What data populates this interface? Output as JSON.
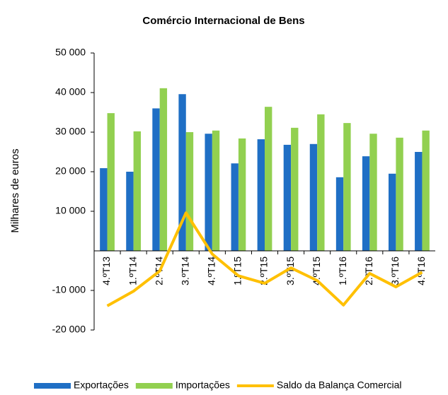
{
  "chart_data": {
    "type": "bar-line",
    "title": "Comércio Internacional de Bens",
    "y_label": "Milhares de euros",
    "categories": [
      "4.ºT13",
      "1.ºT14",
      "2.ºT14",
      "3.ºT14",
      "4.ºT14",
      "1.ºT15",
      "2.ºT15",
      "3.ºT15",
      "4.ºT15",
      "1.ºT16",
      "2.ºT16",
      "3.ºT16",
      "4.ºT16"
    ],
    "series": [
      {
        "name": "Exportações",
        "type": "bar",
        "color": "#1f6fc5",
        "values": [
          20900,
          20000,
          36000,
          39600,
          29600,
          22100,
          28200,
          26800,
          27000,
          18600,
          23900,
          19500,
          25000
        ]
      },
      {
        "name": "Importações",
        "type": "bar",
        "color": "#92d050",
        "values": [
          34800,
          30200,
          41100,
          30000,
          30400,
          28400,
          36400,
          31100,
          34500,
          32300,
          29600,
          28600,
          30400
        ]
      },
      {
        "name": "Saldo da Balança Comercial",
        "type": "line",
        "color": "#ffc000",
        "values": [
          -13900,
          -10200,
          -5100,
          9600,
          -800,
          -6300,
          -8200,
          -4300,
          -7500,
          -13700,
          -5700,
          -9100,
          -5400
        ]
      }
    ],
    "ylim": [
      -20000,
      50000
    ],
    "yticks": [
      {
        "value": -20000,
        "label": "-20 000"
      },
      {
        "value": -10000,
        "label": "-10 000"
      },
      {
        "value": 10000,
        "label": "10 000"
      },
      {
        "value": 20000,
        "label": "20 000"
      },
      {
        "value": 30000,
        "label": "30 000"
      },
      {
        "value": 40000,
        "label": "40 000"
      },
      {
        "value": 50000,
        "label": "50 000"
      }
    ],
    "grid": false
  }
}
